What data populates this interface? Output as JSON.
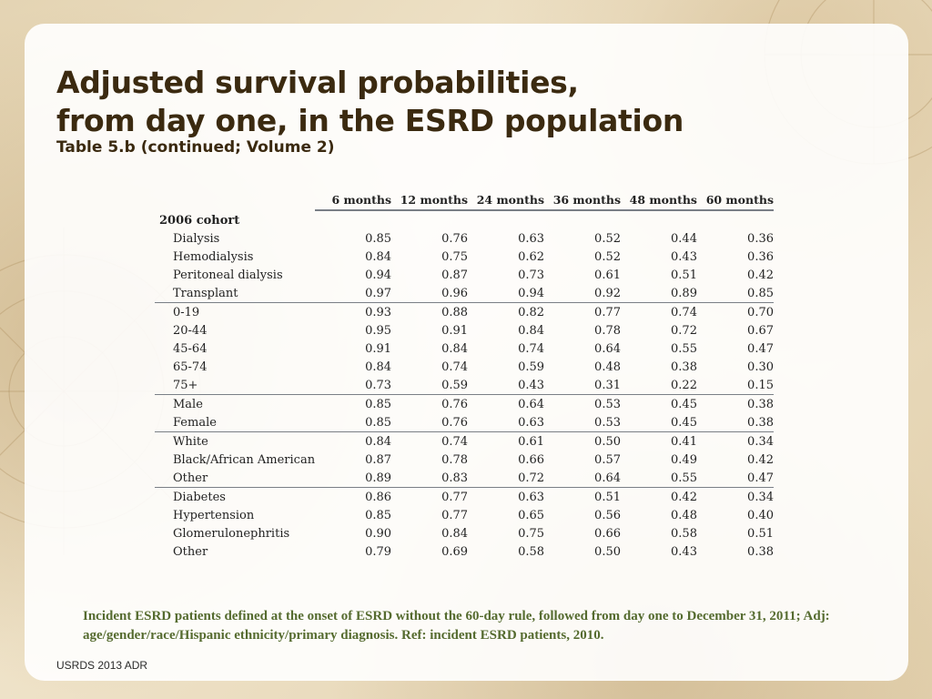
{
  "slide": {
    "title_line1": "Adjusted survival probabilities,",
    "title_line2": "from day one, in the ESRD population",
    "subtitle": "Table 5.b (continued; Volume 2)",
    "footnote": "Incident ESRD patients defined at the onset of ESRD without the 60-day rule, followed from day one to December 31, 2011; Adj: age/gender/race/Hispanic ethnicity/primary diagnosis. Ref: incident ESRD patients, 2010.",
    "footer": "USRDS 2013 ADR"
  },
  "table": {
    "columns": [
      "6 months",
      "12 months",
      "24 months",
      "36 months",
      "48 months",
      "60 months"
    ],
    "cohort": "2006 cohort",
    "groups": [
      [
        {
          "label": "Dialysis",
          "values": [
            "0.85",
            "0.76",
            "0.63",
            "0.52",
            "0.44",
            "0.36"
          ]
        },
        {
          "label": "Hemodialysis",
          "values": [
            "0.84",
            "0.75",
            "0.62",
            "0.52",
            "0.43",
            "0.36"
          ]
        },
        {
          "label": "Peritoneal dialysis",
          "values": [
            "0.94",
            "0.87",
            "0.73",
            "0.61",
            "0.51",
            "0.42"
          ]
        },
        {
          "label": "Transplant",
          "values": [
            "0.97",
            "0.96",
            "0.94",
            "0.92",
            "0.89",
            "0.85"
          ]
        }
      ],
      [
        {
          "label": "0-19",
          "values": [
            "0.93",
            "0.88",
            "0.82",
            "0.77",
            "0.74",
            "0.70"
          ]
        },
        {
          "label": "20-44",
          "values": [
            "0.95",
            "0.91",
            "0.84",
            "0.78",
            "0.72",
            "0.67"
          ]
        },
        {
          "label": "45-64",
          "values": [
            "0.91",
            "0.84",
            "0.74",
            "0.64",
            "0.55",
            "0.47"
          ]
        },
        {
          "label": "65-74",
          "values": [
            "0.84",
            "0.74",
            "0.59",
            "0.48",
            "0.38",
            "0.30"
          ]
        },
        {
          "label": "75+",
          "values": [
            "0.73",
            "0.59",
            "0.43",
            "0.31",
            "0.22",
            "0.15"
          ]
        }
      ],
      [
        {
          "label": "Male",
          "values": [
            "0.85",
            "0.76",
            "0.64",
            "0.53",
            "0.45",
            "0.38"
          ]
        },
        {
          "label": "Female",
          "values": [
            "0.85",
            "0.76",
            "0.63",
            "0.53",
            "0.45",
            "0.38"
          ]
        }
      ],
      [
        {
          "label": "White",
          "values": [
            "0.84",
            "0.74",
            "0.61",
            "0.50",
            "0.41",
            "0.34"
          ]
        },
        {
          "label": "Black/African American",
          "values": [
            "0.87",
            "0.78",
            "0.66",
            "0.57",
            "0.49",
            "0.42"
          ]
        },
        {
          "label": "Other",
          "values": [
            "0.89",
            "0.83",
            "0.72",
            "0.64",
            "0.55",
            "0.47"
          ]
        }
      ],
      [
        {
          "label": "Diabetes",
          "values": [
            "0.86",
            "0.77",
            "0.63",
            "0.51",
            "0.42",
            "0.34"
          ]
        },
        {
          "label": "Hypertension",
          "values": [
            "0.85",
            "0.77",
            "0.65",
            "0.56",
            "0.48",
            "0.40"
          ]
        },
        {
          "label": "Glomerulonephritis",
          "values": [
            "0.90",
            "0.84",
            "0.75",
            "0.66",
            "0.58",
            "0.51"
          ]
        },
        {
          "label": "Other",
          "values": [
            "0.79",
            "0.69",
            "0.58",
            "0.50",
            "0.43",
            "0.38"
          ]
        }
      ]
    ]
  }
}
